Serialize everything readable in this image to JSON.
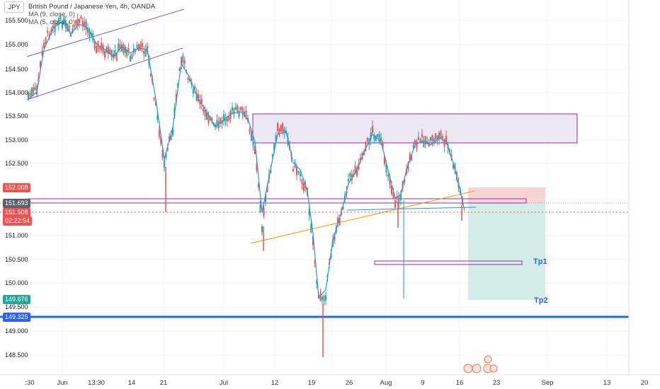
{
  "ticker": "JPY",
  "legend": {
    "title": "British Pound / Japanese Yen, 4h, OANDA",
    "ma1": "MA (9, close, 0)",
    "ma2": "MA (5, close, 0)"
  },
  "price_axis": [
    "155.500",
    "155.000",
    "154.500",
    "154.000",
    "153.500",
    "153.000",
    "152.500",
    "151.000",
    "150.500",
    "150.000",
    "149.500",
    "149.000",
    "148.500"
  ],
  "badges": {
    "b1": "152.008",
    "b2": "151.693",
    "b3_price": "151.508",
    "b3_timer": "02:22:54",
    "b4": "149.676",
    "b5": "149.325"
  },
  "date_axis": [
    ":30",
    "Jun",
    "13:30",
    "14",
    "21",
    "Jul",
    "12",
    "19",
    "26",
    "Aug",
    "9",
    "16",
    "23",
    "Sep",
    "13",
    "20"
  ],
  "annotations": {
    "tp1": "Tp1",
    "tp2": "Tp2"
  },
  "colors": {
    "up": "#26a69a",
    "down": "#ef5350",
    "ma": "#2196f3",
    "channel": "#7e57c2",
    "zone": "#ede7f6",
    "zone_border": "#9c27b0",
    "trendline": "#ff9800",
    "support": "#2962ff",
    "stop": "#f8c9c9",
    "target": "#cdeae4"
  }
}
